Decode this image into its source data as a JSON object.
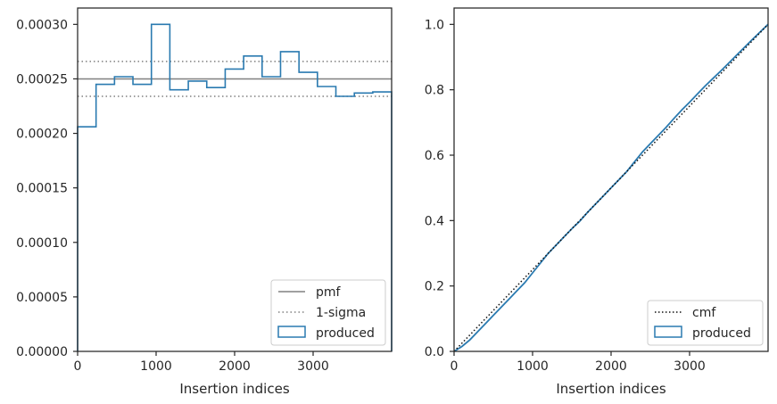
{
  "chart_data": [
    {
      "type": "step",
      "xlabel": "Insertion indices",
      "ylabel": "",
      "xlim": [
        0,
        4000
      ],
      "ylim": [
        0,
        0.000315
      ],
      "xticks": [
        0,
        1000,
        2000,
        3000
      ],
      "xtick_labels": [
        "0",
        "1000",
        "2000",
        "3000"
      ],
      "yticks": [
        0,
        5e-05,
        0.0001,
        0.00015,
        0.0002,
        0.00025,
        0.0003
      ],
      "ytick_labels": [
        "0.00000",
        "0.00005",
        "0.00010",
        "0.00015",
        "0.00020",
        "0.00025",
        "0.00030"
      ],
      "grid": false,
      "legend_location": "lower right",
      "pmf": {
        "name": "pmf",
        "value": 0.00025,
        "color": "#808080"
      },
      "sigma": {
        "name": "1-sigma",
        "values": [
          0.000234,
          0.000266
        ],
        "color": "#808080"
      },
      "histogram": {
        "name": "produced",
        "color": "#2a7ab0",
        "bin_edges": [
          0,
          235,
          470,
          705,
          940,
          1175,
          1410,
          1645,
          1880,
          2115,
          2350,
          2585,
          2820,
          3055,
          3290,
          3525,
          3760,
          4000
        ],
        "values": [
          0.000206,
          0.000245,
          0.000252,
          0.000245,
          0.0003,
          0.00024,
          0.000248,
          0.000242,
          0.000259,
          0.000271,
          0.000252,
          0.000275,
          0.000256,
          0.000243,
          0.000234,
          0.000237,
          0.000238
        ]
      }
    },
    {
      "type": "line",
      "xlabel": "Insertion indices",
      "ylabel": "",
      "xlim": [
        0,
        4000
      ],
      "ylim": [
        0,
        1.05
      ],
      "xticks": [
        0,
        1000,
        2000,
        3000
      ],
      "xtick_labels": [
        "0",
        "1000",
        "2000",
        "3000"
      ],
      "yticks": [
        0,
        0.2,
        0.4,
        0.6,
        0.8,
        1.0
      ],
      "ytick_labels": [
        "0.0",
        "0.2",
        "0.4",
        "0.6",
        "0.8",
        "1.0"
      ],
      "grid": false,
      "legend_location": "lower right",
      "series": [
        {
          "name": "cmf",
          "style": "dotted",
          "color": "#111111",
          "x": [
            0,
            4000
          ],
          "y": [
            0,
            1.0
          ]
        },
        {
          "name": "produced",
          "style": "solid",
          "color": "#2a7ab0",
          "x": [
            0,
            100,
            200,
            300,
            400,
            500,
            600,
            700,
            800,
            900,
            1000,
            1100,
            1200,
            1300,
            1400,
            1500,
            1600,
            1700,
            1800,
            1900,
            2000,
            2100,
            2200,
            2300,
            2400,
            2500,
            2600,
            2700,
            2800,
            2900,
            3000,
            3100,
            3200,
            3300,
            3400,
            3500,
            3600,
            3700,
            3800,
            3900,
            4000
          ],
          "y": [
            0,
            0.015,
            0.035,
            0.06,
            0.085,
            0.11,
            0.135,
            0.16,
            0.185,
            0.21,
            0.24,
            0.27,
            0.3,
            0.325,
            0.35,
            0.375,
            0.398,
            0.425,
            0.45,
            0.475,
            0.5,
            0.525,
            0.55,
            0.58,
            0.61,
            0.635,
            0.66,
            0.685,
            0.712,
            0.738,
            0.762,
            0.787,
            0.812,
            0.835,
            0.858,
            0.882,
            0.906,
            0.93,
            0.954,
            0.977,
            1.0
          ]
        }
      ]
    }
  ]
}
